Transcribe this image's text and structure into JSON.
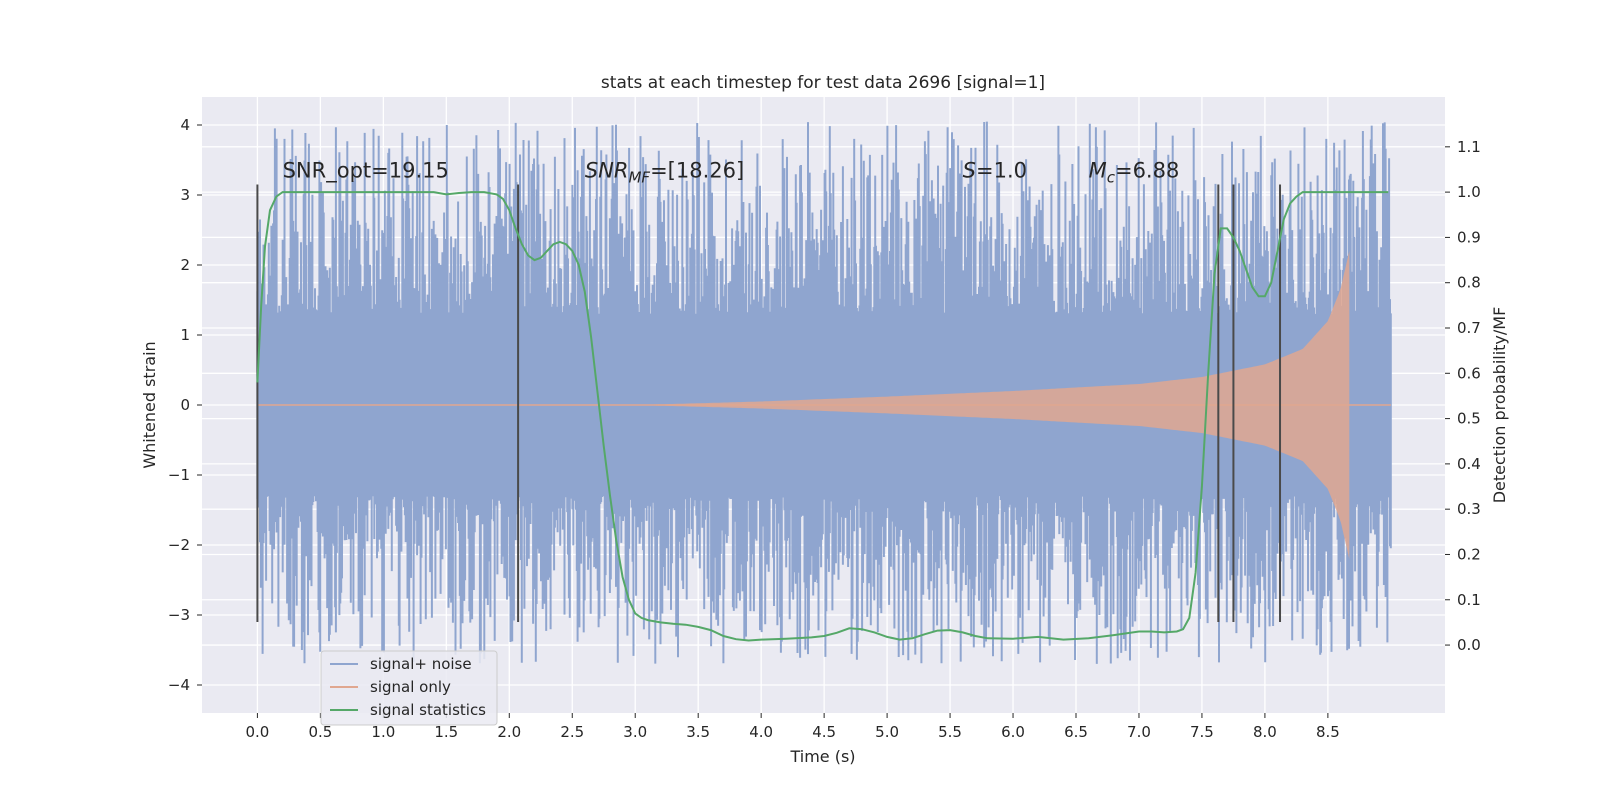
{
  "chart_data": {
    "type": "line",
    "title": "stats at each timestep for test data 2696 [signal=1]",
    "xlabel": "Time (s)",
    "ylabel": "Whitened strain",
    "ylabel_right": "Detection probability/MF",
    "xlim": [
      -0.44,
      9.43
    ],
    "ylim": [
      -4.4,
      4.4
    ],
    "ylim_right": [
      -0.15,
      1.21
    ],
    "x_ticks": [
      "0.0",
      "0.5",
      "1.0",
      "1.5",
      "2.0",
      "2.5",
      "3.0",
      "3.5",
      "4.0",
      "4.5",
      "5.0",
      "5.5",
      "6.0",
      "6.5",
      "7.0",
      "7.5",
      "8.0",
      "8.5"
    ],
    "y_ticks": [
      "4",
      "3",
      "2",
      "1",
      "0",
      "−1",
      "−2",
      "−3",
      "−4"
    ],
    "y_ticks_right": [
      "1.1",
      "1.0",
      "0.9",
      "0.8",
      "0.7",
      "0.6",
      "0.5",
      "0.4",
      "0.3",
      "0.2",
      "0.1",
      "0.0"
    ],
    "grid": true,
    "annotations": [
      {
        "text": "SNR_opt=19.15",
        "x": 0.2,
        "y": 3.25
      },
      {
        "base": "SNR",
        "sub": "MF",
        "rest": "=[18.26]",
        "x": 2.6,
        "y": 3.25
      },
      {
        "base": "S",
        "sub": "",
        "rest": "=1.0",
        "x": 5.6,
        "y": 3.25
      },
      {
        "base": "M",
        "sub": "c",
        "rest": "=6.88",
        "x": 6.6,
        "y": 3.25
      }
    ],
    "vlines": {
      "x": [
        0.0,
        2.07,
        7.63,
        7.75,
        8.12
      ],
      "ymin": -3.1,
      "ymax": 3.15,
      "color": "#4a4a4a"
    },
    "legend": {
      "placement": "lower-left",
      "entries": [
        "signal+ noise",
        "signal only",
        "signal statistics"
      ]
    },
    "series": [
      {
        "name": "signal+ noise",
        "color": "#8fa5cf",
        "axis": "left",
        "x_range": [
          0.0,
          9.0
        ],
        "envelope": 1.3,
        "peak_max": 4.05,
        "peak_min": -3.7
      },
      {
        "name": "signal only",
        "color": "#e0a790",
        "axis": "left",
        "x_range": [
          0.0,
          8.67
        ],
        "amplitude": [
          [
            0.0,
            0.0
          ],
          [
            3.0,
            0.0
          ],
          [
            4.0,
            0.05
          ],
          [
            5.0,
            0.12
          ],
          [
            6.0,
            0.2
          ],
          [
            7.0,
            0.3
          ],
          [
            7.5,
            0.4
          ],
          [
            8.0,
            0.58
          ],
          [
            8.3,
            0.8
          ],
          [
            8.5,
            1.2
          ],
          [
            8.6,
            1.65
          ],
          [
            8.67,
            2.2
          ]
        ]
      },
      {
        "name": "signal statistics",
        "color": "#55a868",
        "axis": "right",
        "x": [
          0.0,
          0.03,
          0.06,
          0.1,
          0.15,
          0.2,
          0.3,
          0.5,
          0.8,
          1.0,
          1.2,
          1.4,
          1.5,
          1.6,
          1.7,
          1.8,
          1.9,
          1.95,
          2.0,
          2.05,
          2.1,
          2.15,
          2.2,
          2.25,
          2.3,
          2.35,
          2.4,
          2.45,
          2.5,
          2.55,
          2.6,
          2.65,
          2.7,
          2.75,
          2.8,
          2.85,
          2.9,
          2.95,
          3.0,
          3.05,
          3.1,
          3.2,
          3.3,
          3.4,
          3.5,
          3.6,
          3.7,
          3.8,
          3.9,
          4.0,
          4.2,
          4.4,
          4.5,
          4.6,
          4.7,
          4.8,
          4.9,
          5.0,
          5.1,
          5.2,
          5.3,
          5.4,
          5.5,
          5.6,
          5.7,
          5.8,
          6.0,
          6.2,
          6.4,
          6.6,
          6.8,
          7.0,
          7.1,
          7.2,
          7.3,
          7.35,
          7.4,
          7.45,
          7.5,
          7.55,
          7.6,
          7.65,
          7.7,
          7.75,
          7.8,
          7.85,
          7.9,
          7.95,
          8.0,
          8.05,
          8.1,
          8.15,
          8.2,
          8.25,
          8.3,
          8.4,
          8.5,
          8.6,
          8.7,
          8.8,
          8.9,
          8.98
        ],
        "y": [
          0.58,
          0.75,
          0.88,
          0.96,
          0.99,
          1.0,
          1.0,
          1.0,
          1.0,
          1.0,
          1.0,
          1.0,
          0.995,
          0.998,
          1.0,
          1.0,
          0.995,
          0.985,
          0.96,
          0.92,
          0.885,
          0.86,
          0.85,
          0.855,
          0.87,
          0.885,
          0.89,
          0.885,
          0.87,
          0.84,
          0.78,
          0.68,
          0.56,
          0.44,
          0.33,
          0.23,
          0.15,
          0.1,
          0.07,
          0.06,
          0.055,
          0.05,
          0.047,
          0.045,
          0.04,
          0.033,
          0.02,
          0.013,
          0.01,
          0.012,
          0.014,
          0.017,
          0.02,
          0.027,
          0.037,
          0.035,
          0.028,
          0.018,
          0.012,
          0.015,
          0.024,
          0.032,
          0.033,
          0.028,
          0.02,
          0.015,
          0.014,
          0.018,
          0.012,
          0.015,
          0.022,
          0.03,
          0.03,
          0.028,
          0.03,
          0.035,
          0.06,
          0.16,
          0.35,
          0.6,
          0.82,
          0.92,
          0.92,
          0.9,
          0.87,
          0.83,
          0.79,
          0.77,
          0.77,
          0.8,
          0.87,
          0.94,
          0.975,
          0.99,
          1.0,
          1.0,
          1.0,
          1.0,
          1.0,
          1.0,
          1.0,
          1.0
        ]
      }
    ]
  }
}
